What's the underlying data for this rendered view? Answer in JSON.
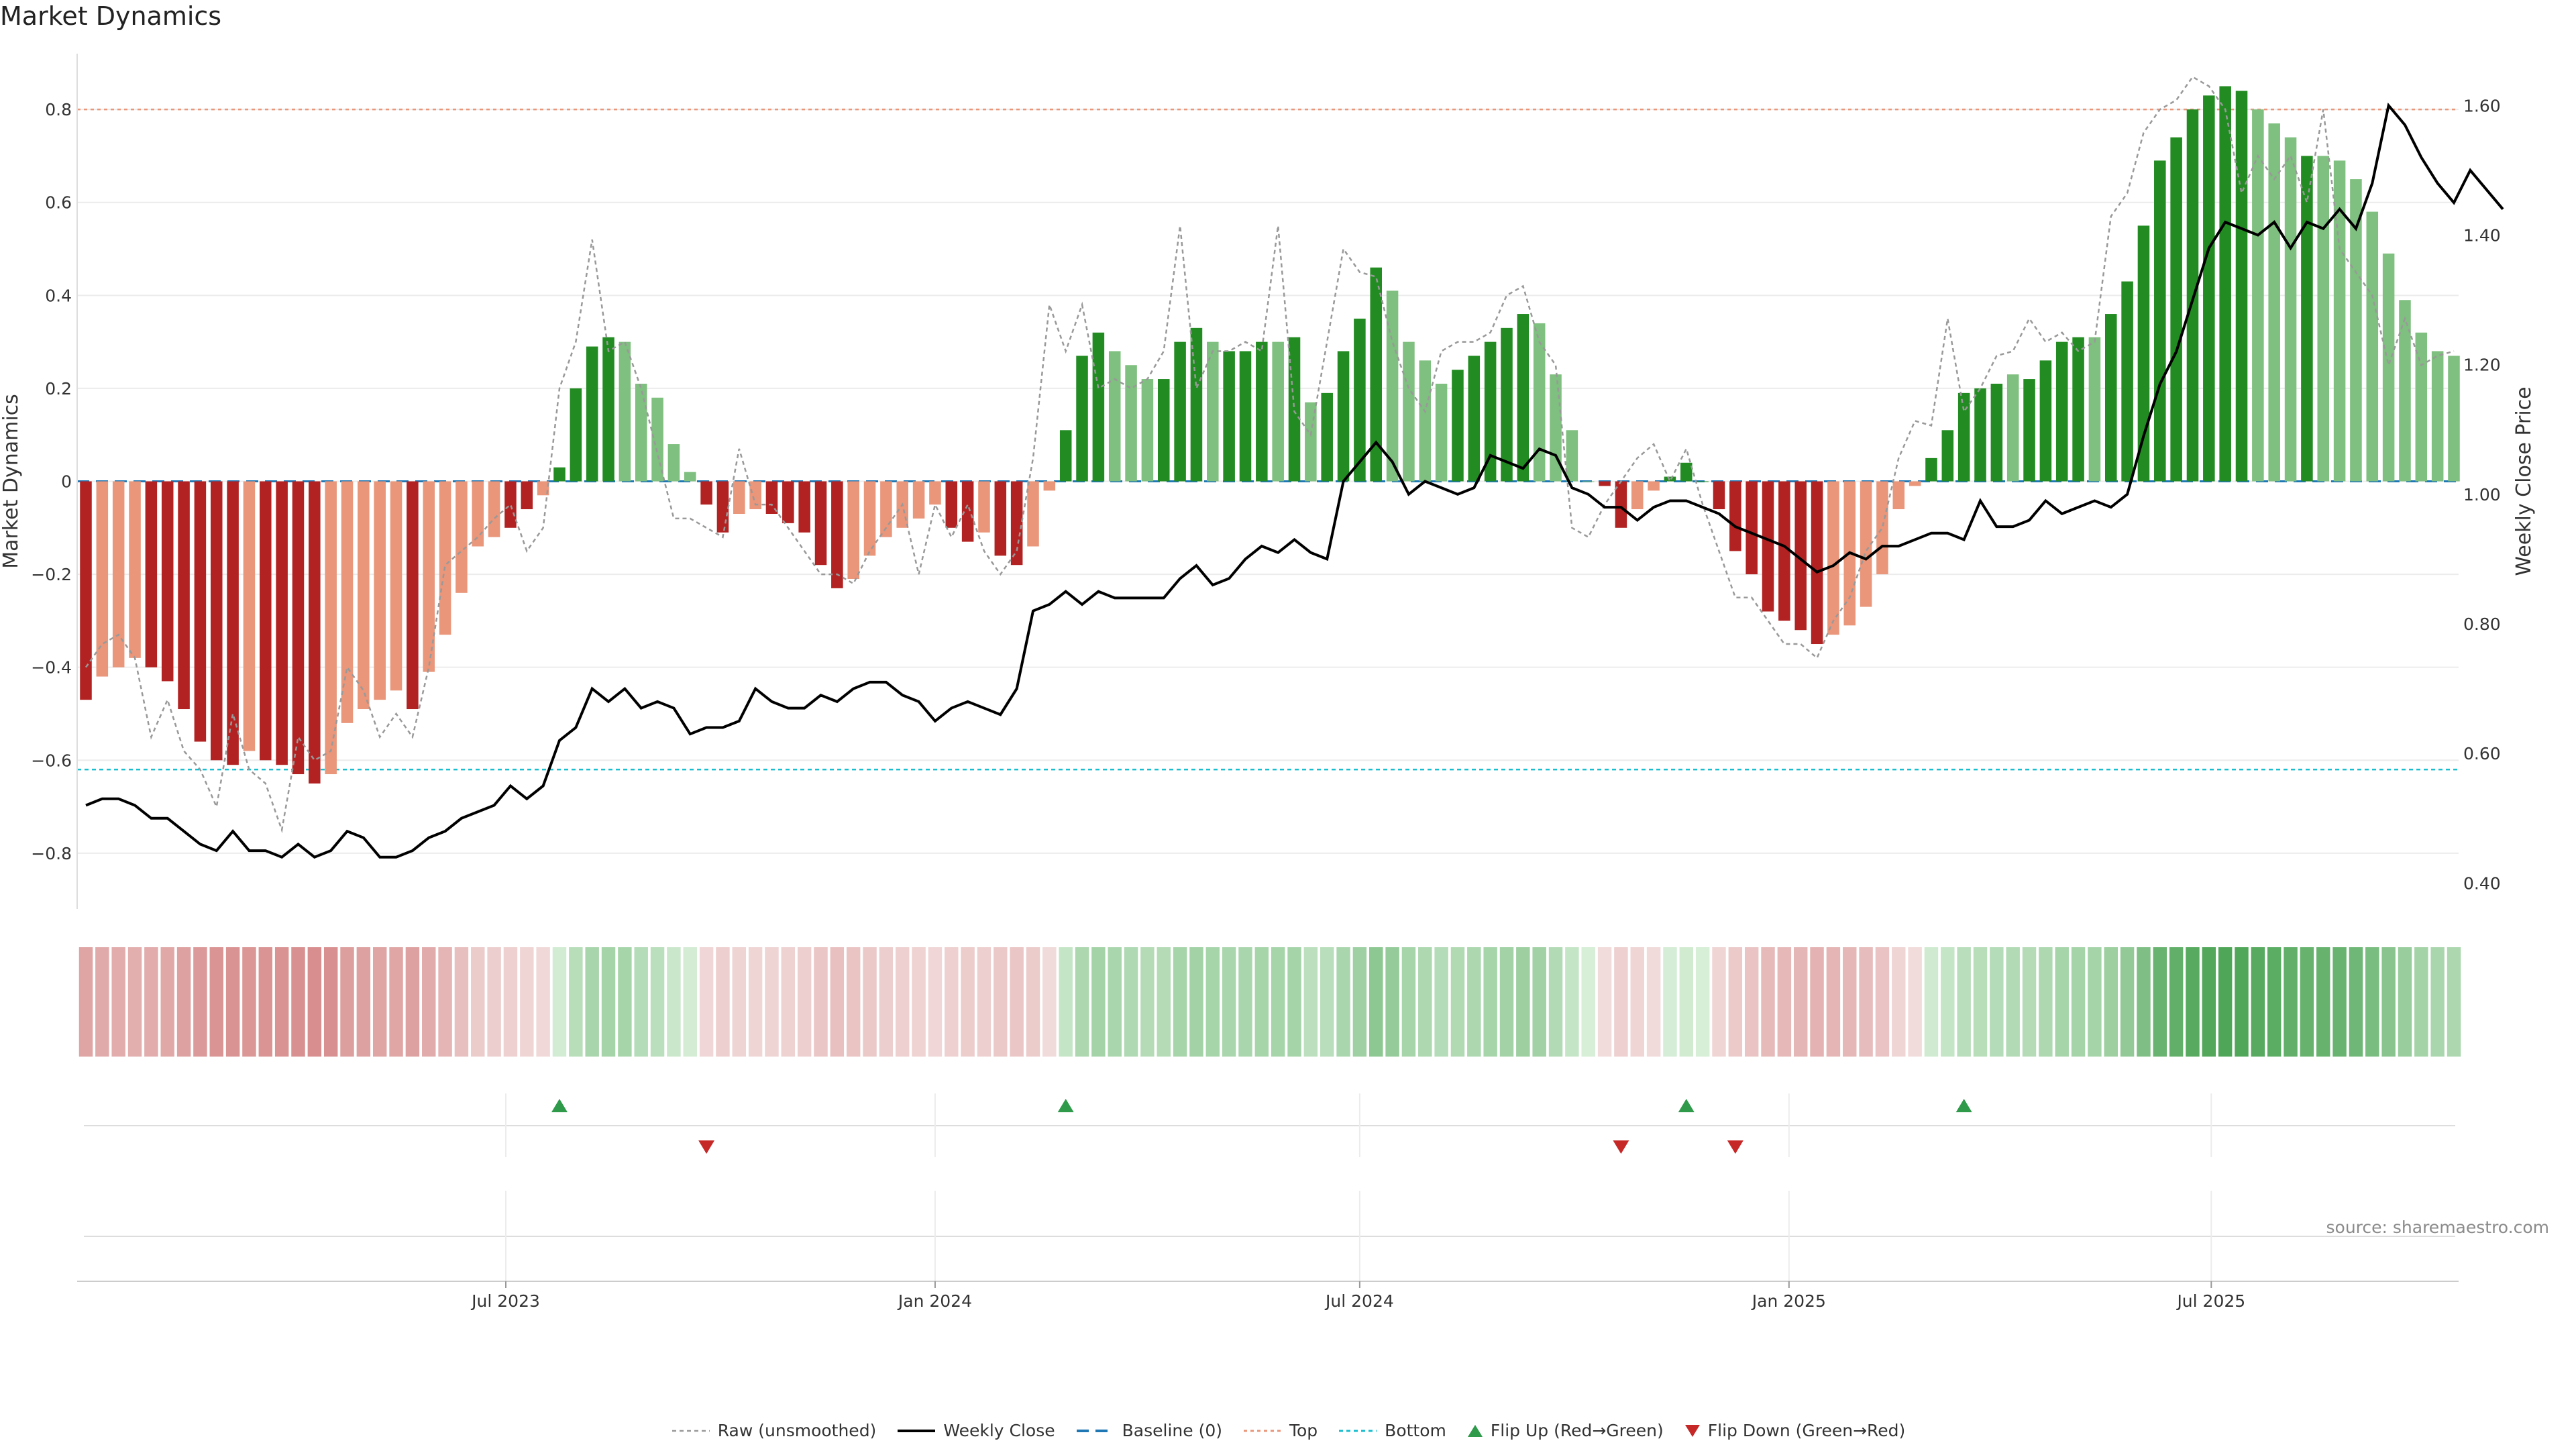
{
  "chart_data": {
    "title": "Market Dynamics",
    "type": "bar",
    "x_start": "2023-01-02",
    "x_step_days": 7,
    "x_ticks": [
      "Jul 2023",
      "Jan 2024",
      "Jul 2024",
      "Jan 2025",
      "Jul 2025"
    ],
    "y_left": {
      "label": "Market Dynamics",
      "range": [
        -0.92,
        0.92
      ],
      "ticks": [
        "0.8",
        "0.6",
        "0.4",
        "0.2",
        "0",
        "−0.2",
        "−0.4",
        "−0.6",
        "−0.8"
      ],
      "tick_values": [
        0.8,
        0.6,
        0.4,
        0.2,
        0,
        -0.2,
        -0.4,
        -0.6,
        -0.8
      ]
    },
    "y_right": {
      "label": "Weekly Close Price",
      "range": [
        0.36,
        1.68
      ],
      "ticks": [
        "1.60",
        "1.40",
        "1.20",
        "1.00",
        "0.80",
        "0.60",
        "0.40"
      ],
      "tick_values": [
        1.6,
        1.4,
        1.2,
        1.0,
        0.8,
        0.6,
        0.4
      ]
    },
    "thresholds": {
      "top": 0.8,
      "bottom": -0.62,
      "baseline": 0
    },
    "series": [
      {
        "name": "Market Dynamics",
        "kind": "bar",
        "values": [
          -0.47,
          -0.42,
          -0.4,
          -0.38,
          -0.4,
          -0.43,
          -0.49,
          -0.56,
          -0.6,
          -0.61,
          -0.58,
          -0.6,
          -0.61,
          -0.63,
          -0.65,
          -0.63,
          -0.52,
          -0.49,
          -0.47,
          -0.45,
          -0.49,
          -0.41,
          -0.33,
          -0.24,
          -0.14,
          -0.12,
          -0.1,
          -0.06,
          -0.03,
          0.03,
          0.2,
          0.29,
          0.31,
          0.3,
          0.21,
          0.18,
          0.08,
          0.02,
          -0.05,
          -0.11,
          -0.07,
          -0.06,
          -0.07,
          -0.09,
          -0.11,
          -0.18,
          -0.23,
          -0.21,
          -0.16,
          -0.12,
          -0.1,
          -0.08,
          -0.05,
          -0.1,
          -0.13,
          -0.11,
          -0.16,
          -0.18,
          -0.14,
          -0.02,
          0.11,
          0.27,
          0.32,
          0.28,
          0.25,
          0.22,
          0.22,
          0.3,
          0.33,
          0.3,
          0.28,
          0.28,
          0.3,
          0.3,
          0.31,
          0.17,
          0.19,
          0.28,
          0.35,
          0.46,
          0.41,
          0.3,
          0.26,
          0.21,
          0.24,
          0.27,
          0.3,
          0.33,
          0.36,
          0.34,
          0.23,
          0.11,
          0.0,
          -0.01,
          -0.1,
          -0.06,
          -0.02,
          0.01,
          0.04,
          0.0,
          -0.06,
          -0.15,
          -0.2,
          -0.28,
          -0.3,
          -0.32,
          -0.35,
          -0.33,
          -0.31,
          -0.27,
          -0.2,
          -0.06,
          -0.01,
          0.05,
          0.11,
          0.19,
          0.2,
          0.21,
          0.23,
          0.22,
          0.26,
          0.3,
          0.31,
          0.31,
          0.36,
          0.43,
          0.55,
          0.69,
          0.74,
          0.8,
          0.83,
          0.85,
          0.84,
          0.8,
          0.77,
          0.74,
          0.7,
          0.7,
          0.69,
          0.65,
          0.58,
          0.49,
          0.39,
          0.32,
          0.28,
          0.27
        ],
        "fill": [
          "#b22222",
          "#e9967a",
          "#e9967a",
          "#e9967a",
          "#b22222",
          "#b22222",
          "#b22222",
          "#b22222",
          "#b22222",
          "#b22222",
          "#e9967a",
          "#b22222",
          "#b22222",
          "#b22222",
          "#b22222",
          "#e9967a",
          "#e9967a",
          "#e9967a",
          "#e9967a",
          "#e9967a",
          "#b22222",
          "#e9967a",
          "#e9967a",
          "#e9967a",
          "#e9967a",
          "#e9967a",
          "#b22222",
          "#b22222",
          "#e9967a",
          "#228b22",
          "#228b22",
          "#228b22",
          "#228b22",
          "#7fbf7f",
          "#7fbf7f",
          "#7fbf7f",
          "#7fbf7f",
          "#7fbf7f",
          "#b22222",
          "#b22222",
          "#e9967a",
          "#e9967a",
          "#b22222",
          "#b22222",
          "#b22222",
          "#b22222",
          "#b22222",
          "#e9967a",
          "#e9967a",
          "#e9967a",
          "#e9967a",
          "#e9967a",
          "#e9967a",
          "#b22222",
          "#b22222",
          "#e9967a",
          "#b22222",
          "#b22222",
          "#e9967a",
          "#e9967a",
          "#228b22",
          "#228b22",
          "#228b22",
          "#7fbf7f",
          "#7fbf7f",
          "#7fbf7f",
          "#228b22",
          "#228b22",
          "#228b22",
          "#7fbf7f",
          "#228b22",
          "#228b22",
          "#228b22",
          "#7fbf7f",
          "#228b22",
          "#7fbf7f",
          "#228b22",
          "#228b22",
          "#228b22",
          "#228b22",
          "#7fbf7f",
          "#7fbf7f",
          "#7fbf7f",
          "#7fbf7f",
          "#228b22",
          "#228b22",
          "#228b22",
          "#228b22",
          "#228b22",
          "#7fbf7f",
          "#7fbf7f",
          "#7fbf7f",
          "#7fbf7f",
          "#b22222",
          "#b22222",
          "#e9967a",
          "#e9967a",
          "#228b22",
          "#228b22",
          "#228b22",
          "#b22222",
          "#b22222",
          "#b22222",
          "#b22222",
          "#b22222",
          "#b22222",
          "#b22222",
          "#e9967a",
          "#e9967a",
          "#e9967a",
          "#e9967a",
          "#e9967a",
          "#e9967a",
          "#228b22",
          "#228b22",
          "#228b22",
          "#228b22",
          "#228b22",
          "#7fbf7f",
          "#228b22",
          "#228b22",
          "#228b22",
          "#228b22",
          "#7fbf7f",
          "#228b22",
          "#228b22",
          "#228b22",
          "#228b22",
          "#228b22",
          "#228b22",
          "#228b22",
          "#228b22",
          "#228b22",
          "#7fbf7f",
          "#7fbf7f",
          "#7fbf7f",
          "#228b22",
          "#7fbf7f",
          "#7fbf7f",
          "#7fbf7f",
          "#7fbf7f",
          "#7fbf7f",
          "#7fbf7f",
          "#7fbf7f",
          "#7fbf7f",
          "#7fbf7f"
        ]
      },
      {
        "name": "Raw (unsmoothed)",
        "kind": "line",
        "color": "#999999",
        "values": [
          -0.4,
          -0.35,
          -0.33,
          -0.38,
          -0.55,
          -0.47,
          -0.58,
          -0.62,
          -0.7,
          -0.5,
          -0.62,
          -0.65,
          -0.75,
          -0.55,
          -0.6,
          -0.58,
          -0.4,
          -0.45,
          -0.55,
          -0.5,
          -0.55,
          -0.4,
          -0.18,
          -0.15,
          -0.12,
          -0.08,
          -0.05,
          -0.15,
          -0.1,
          0.2,
          0.3,
          0.52,
          0.28,
          0.3,
          0.2,
          0.06,
          -0.08,
          -0.08,
          -0.1,
          -0.12,
          0.07,
          -0.05,
          -0.05,
          -0.1,
          -0.15,
          -0.2,
          -0.2,
          -0.22,
          -0.15,
          -0.1,
          -0.05,
          -0.2,
          -0.05,
          -0.12,
          -0.05,
          -0.15,
          -0.2,
          -0.15,
          0.05,
          0.38,
          0.28,
          0.38,
          0.2,
          0.22,
          0.2,
          0.22,
          0.28,
          0.55,
          0.2,
          0.28,
          0.28,
          0.3,
          0.28,
          0.55,
          0.15,
          0.1,
          0.3,
          0.5,
          0.45,
          0.44,
          0.3,
          0.2,
          0.15,
          0.28,
          0.3,
          0.3,
          0.32,
          0.4,
          0.42,
          0.3,
          0.25,
          -0.1,
          -0.12,
          -0.05,
          0.0,
          0.05,
          0.08,
          0.0,
          0.07,
          -0.05,
          -0.15,
          -0.25,
          -0.25,
          -0.3,
          -0.35,
          -0.35,
          -0.38,
          -0.3,
          -0.25,
          -0.15,
          -0.1,
          0.05,
          0.13,
          0.12,
          0.35,
          0.15,
          0.2,
          0.27,
          0.28,
          0.35,
          0.3,
          0.32,
          0.28,
          0.3,
          0.57,
          0.62,
          0.75,
          0.8,
          0.82,
          0.87,
          0.85,
          0.8,
          0.62,
          0.7,
          0.65,
          0.7,
          0.6,
          0.8,
          0.5,
          0.45,
          0.4,
          0.25,
          0.35,
          0.25,
          0.27,
          0.28
        ]
      },
      {
        "name": "Weekly Close",
        "kind": "line",
        "axis": "right",
        "color": "#000000",
        "values": [
          0.52,
          0.53,
          0.53,
          0.52,
          0.5,
          0.5,
          0.48,
          0.46,
          0.45,
          0.48,
          0.45,
          0.45,
          0.44,
          0.46,
          0.44,
          0.45,
          0.48,
          0.47,
          0.44,
          0.44,
          0.45,
          0.47,
          0.48,
          0.5,
          0.51,
          0.52,
          0.55,
          0.53,
          0.55,
          0.62,
          0.64,
          0.7,
          0.68,
          0.7,
          0.67,
          0.68,
          0.67,
          0.63,
          0.64,
          0.64,
          0.65,
          0.7,
          0.68,
          0.67,
          0.67,
          0.69,
          0.68,
          0.7,
          0.71,
          0.71,
          0.69,
          0.68,
          0.65,
          0.67,
          0.68,
          0.67,
          0.66,
          0.7,
          0.82,
          0.83,
          0.85,
          0.83,
          0.85,
          0.84,
          0.84,
          0.84,
          0.84,
          0.87,
          0.89,
          0.86,
          0.87,
          0.9,
          0.92,
          0.91,
          0.93,
          0.91,
          0.9,
          1.02,
          1.05,
          1.08,
          1.05,
          1.0,
          1.02,
          1.01,
          1.0,
          1.01,
          1.06,
          1.05,
          1.04,
          1.07,
          1.06,
          1.01,
          1.0,
          0.98,
          0.98,
          0.96,
          0.98,
          0.99,
          0.99,
          0.98,
          0.97,
          0.95,
          0.94,
          0.93,
          0.92,
          0.9,
          0.88,
          0.89,
          0.91,
          0.9,
          0.92,
          0.92,
          0.93,
          0.94,
          0.94,
          0.93,
          0.99,
          0.95,
          0.95,
          0.96,
          0.99,
          0.97,
          0.98,
          0.99,
          0.98,
          1.0,
          1.09,
          1.17,
          1.22,
          1.3,
          1.38,
          1.42,
          1.41,
          1.4,
          1.42,
          1.38,
          1.42,
          1.41,
          1.44,
          1.41,
          1.48,
          1.6,
          1.57,
          1.52,
          1.48,
          1.45,
          1.5,
          1.47,
          1.44
        ]
      },
      {
        "name": "Baseline (0)",
        "kind": "hline",
        "color": "#1f77b4"
      },
      {
        "name": "Top",
        "kind": "hline",
        "color": "#e9967a"
      },
      {
        "name": "Bottom",
        "kind": "hline",
        "color": "#17becf"
      },
      {
        "name": "Flip Up (Red→Green)",
        "kind": "marker",
        "color": "#2e9a4a",
        "x_index": [
          29,
          60,
          98,
          115
        ]
      },
      {
        "name": "Flip Down (Green→Red)",
        "kind": "marker",
        "color": "#c62828",
        "x_index": [
          38,
          94,
          101
        ]
      }
    ],
    "heat_strip": {
      "values": [
        -0.47,
        -0.42,
        -0.4,
        -0.38,
        -0.4,
        -0.43,
        -0.49,
        -0.56,
        -0.6,
        -0.61,
        -0.58,
        -0.6,
        -0.61,
        -0.63,
        -0.65,
        -0.63,
        -0.52,
        -0.49,
        -0.47,
        -0.45,
        -0.49,
        -0.41,
        -0.33,
        -0.24,
        -0.14,
        -0.12,
        -0.1,
        -0.06,
        -0.03,
        0.03,
        0.2,
        0.29,
        0.31,
        0.3,
        0.21,
        0.18,
        0.08,
        0.02,
        -0.05,
        -0.11,
        -0.07,
        -0.06,
        -0.07,
        -0.09,
        -0.11,
        -0.18,
        -0.23,
        -0.21,
        -0.16,
        -0.12,
        -0.1,
        -0.08,
        -0.05,
        -0.1,
        -0.13,
        -0.11,
        -0.16,
        -0.18,
        -0.14,
        -0.02,
        0.11,
        0.27,
        0.32,
        0.28,
        0.25,
        0.22,
        0.22,
        0.3,
        0.33,
        0.3,
        0.28,
        0.28,
        0.3,
        0.3,
        0.31,
        0.17,
        0.19,
        0.28,
        0.35,
        0.46,
        0.41,
        0.3,
        0.26,
        0.21,
        0.24,
        0.27,
        0.3,
        0.33,
        0.36,
        0.34,
        0.23,
        0.11,
        0.0,
        -0.01,
        -0.1,
        -0.06,
        -0.02,
        0.01,
        0.04,
        0.0,
        -0.06,
        -0.15,
        -0.2,
        -0.28,
        -0.3,
        -0.32,
        -0.35,
        -0.33,
        -0.31,
        -0.27,
        -0.2,
        -0.06,
        -0.01,
        0.05,
        0.11,
        0.19,
        0.2,
        0.21,
        0.23,
        0.22,
        0.26,
        0.3,
        0.31,
        0.31,
        0.36,
        0.43,
        0.55,
        0.69,
        0.74,
        0.8,
        0.83,
        0.85,
        0.84,
        0.8,
        0.77,
        0.74,
        0.7,
        0.7,
        0.69,
        0.65,
        0.58,
        0.49,
        0.39,
        0.32,
        0.28,
        0.27
      ]
    },
    "legend_position": "bottom",
    "grid": true,
    "source": "source: sharemaestro.com"
  }
}
